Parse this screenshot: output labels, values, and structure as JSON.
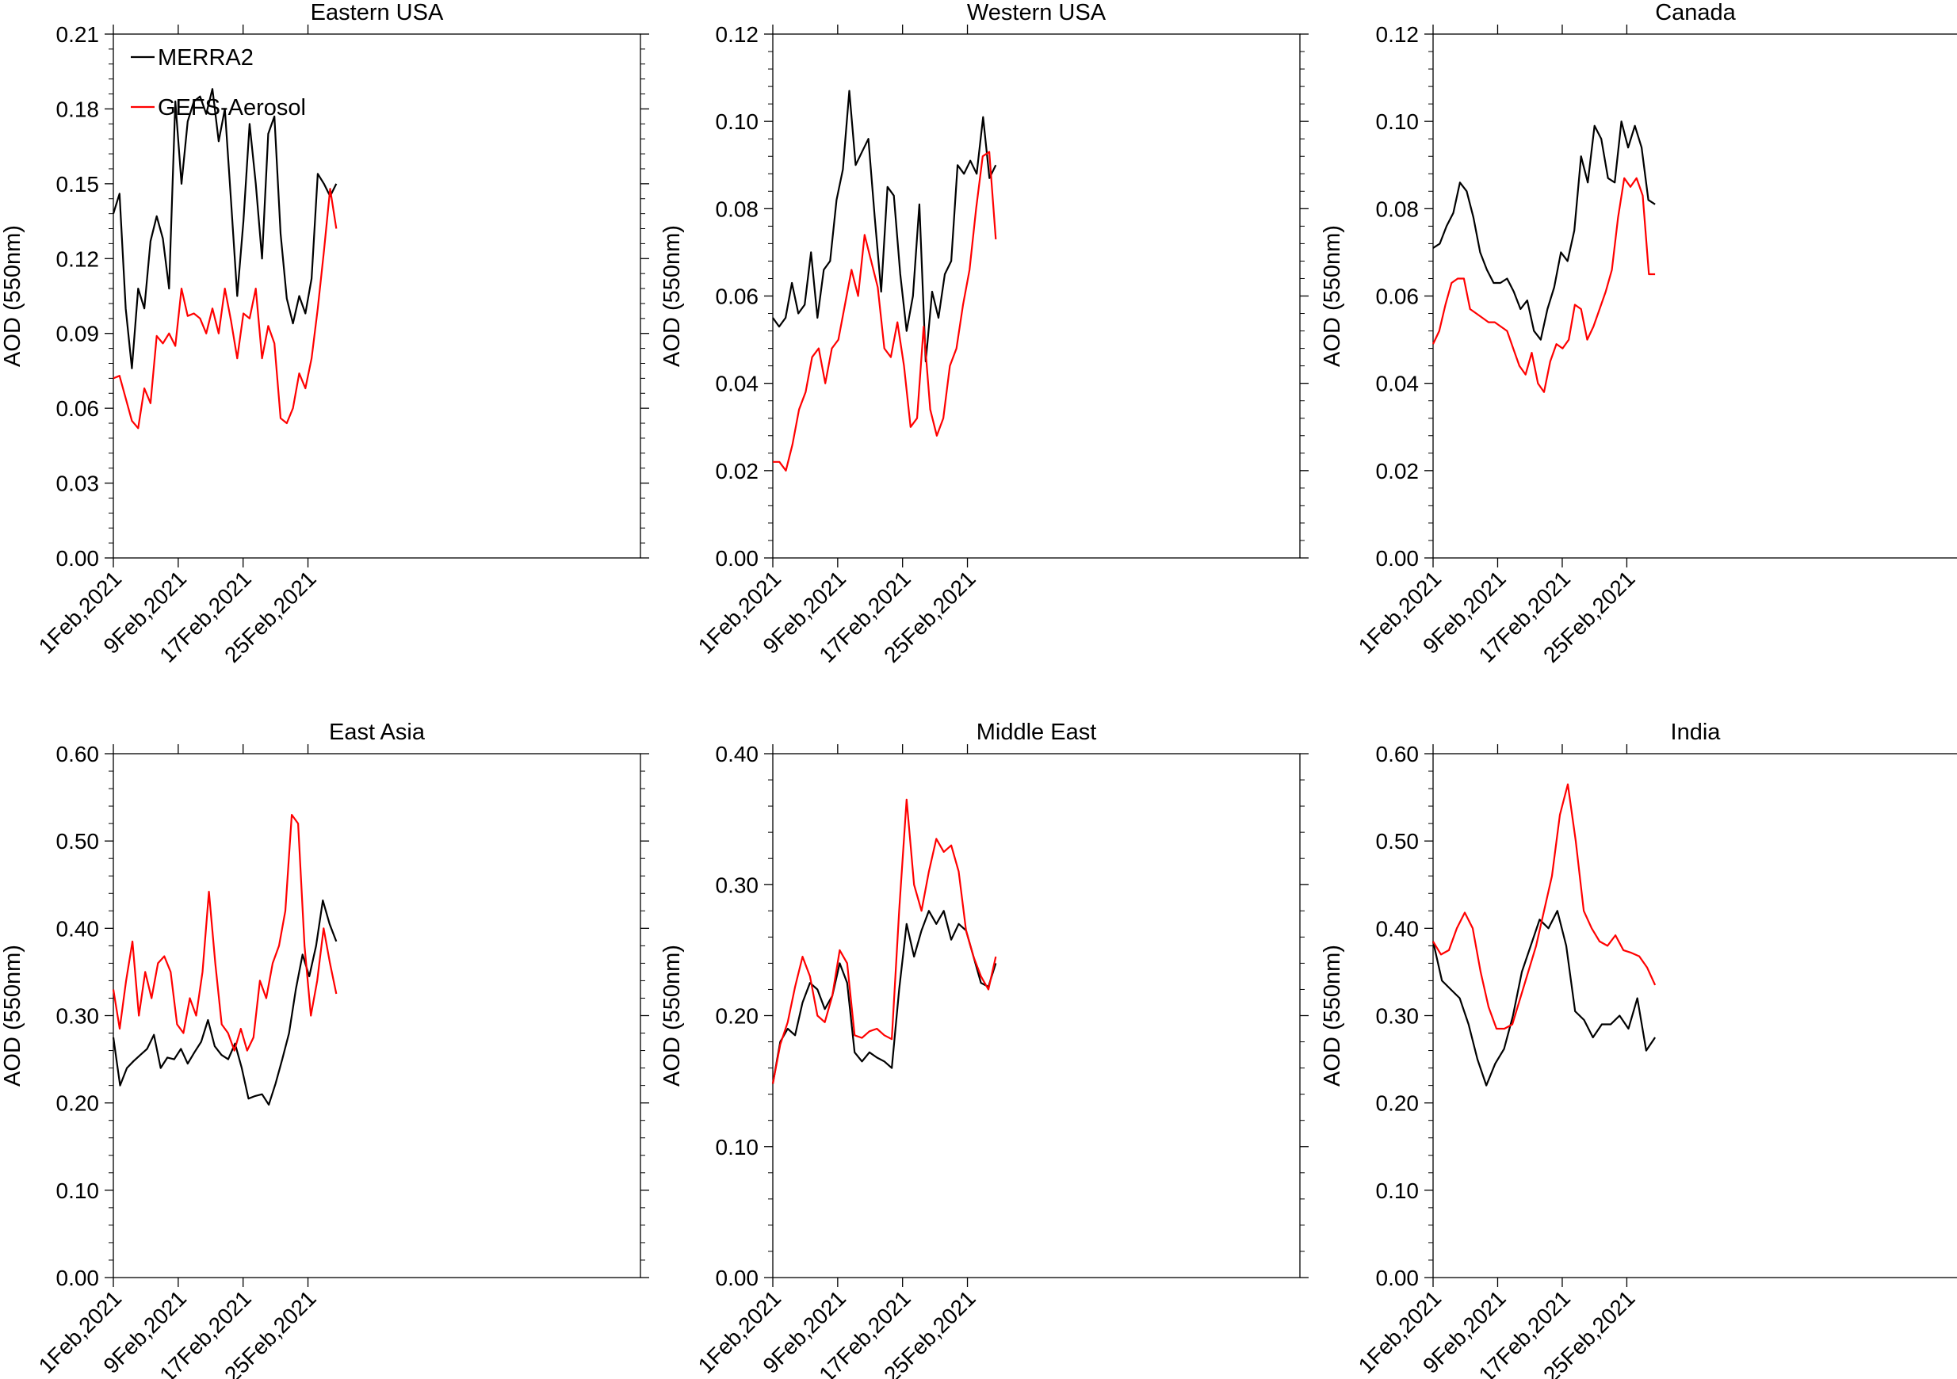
{
  "chart_data": [
    {
      "type": "line",
      "title": "Eastern USA",
      "ylabel": "AOD (550nm)",
      "xlabel": "",
      "ylim": [
        0,
        0.21
      ],
      "yticks": [
        "0.00",
        "0.03",
        "0.06",
        "0.09",
        "0.12",
        "0.15",
        "0.18",
        "0.21"
      ],
      "xticks": [
        "1Feb,2021",
        "9Feb,2021",
        "17Feb,2021",
        "25Feb,2021"
      ],
      "legend": [
        "MERRA2",
        "GEFS-Aerosol"
      ],
      "series": [
        {
          "name": "MERRA2",
          "color": "#000000",
          "values": [
            0.138,
            0.146,
            0.1,
            0.076,
            0.108,
            0.1,
            0.127,
            0.137,
            0.128,
            0.108,
            0.183,
            0.15,
            0.175,
            0.183,
            0.185,
            0.178,
            0.188,
            0.167,
            0.18,
            0.143,
            0.105,
            0.135,
            0.174,
            0.15,
            0.12,
            0.17,
            0.177,
            0.13,
            0.104,
            0.094,
            0.105,
            0.098,
            0.112,
            0.154,
            0.15,
            0.145,
            0.15
          ]
        },
        {
          "name": "GEFS-Aerosol",
          "color": "#ff0000",
          "values": [
            0.072,
            0.073,
            0.064,
            0.055,
            0.052,
            0.068,
            0.062,
            0.089,
            0.086,
            0.09,
            0.085,
            0.108,
            0.097,
            0.098,
            0.096,
            0.09,
            0.1,
            0.09,
            0.108,
            0.095,
            0.08,
            0.098,
            0.096,
            0.108,
            0.08,
            0.093,
            0.086,
            0.056,
            0.054,
            0.06,
            0.074,
            0.068,
            0.08,
            0.1,
            0.123,
            0.148,
            0.132
          ]
        }
      ]
    },
    {
      "type": "line",
      "title": "Western USA",
      "ylabel": "AOD (550nm)",
      "xlabel": "",
      "ylim": [
        0,
        0.12
      ],
      "yticks": [
        "0.00",
        "0.02",
        "0.04",
        "0.06",
        "0.08",
        "0.10",
        "0.12"
      ],
      "xticks": [
        "1Feb,2021",
        "9Feb,2021",
        "17Feb,2021",
        "25Feb,2021"
      ],
      "series": [
        {
          "name": "MERRA2",
          "color": "#000000",
          "values": [
            0.055,
            0.053,
            0.055,
            0.063,
            0.056,
            0.058,
            0.07,
            0.055,
            0.066,
            0.068,
            0.082,
            0.089,
            0.107,
            0.09,
            0.093,
            0.096,
            0.078,
            0.061,
            0.085,
            0.083,
            0.065,
            0.052,
            0.06,
            0.081,
            0.045,
            0.061,
            0.055,
            0.065,
            0.068,
            0.09,
            0.088,
            0.091,
            0.088,
            0.101,
            0.087,
            0.09
          ]
        },
        {
          "name": "GEFS-Aerosol",
          "color": "#ff0000",
          "values": [
            0.022,
            0.022,
            0.02,
            0.026,
            0.034,
            0.038,
            0.046,
            0.048,
            0.04,
            0.048,
            0.05,
            0.058,
            0.066,
            0.06,
            0.074,
            0.068,
            0.062,
            0.048,
            0.046,
            0.054,
            0.044,
            0.03,
            0.032,
            0.053,
            0.034,
            0.028,
            0.032,
            0.044,
            0.048,
            0.058,
            0.066,
            0.08,
            0.092,
            0.093,
            0.073
          ]
        }
      ]
    },
    {
      "type": "line",
      "title": "Canada",
      "ylabel": "AOD (550nm)",
      "xlabel": "",
      "ylim": [
        0,
        0.12
      ],
      "yticks": [
        "0.00",
        "0.02",
        "0.04",
        "0.06",
        "0.08",
        "0.10",
        "0.12"
      ],
      "xticks": [
        "1Feb,2021",
        "9Feb,2021",
        "17Feb,2021",
        "25Feb,2021"
      ],
      "series": [
        {
          "name": "MERRA2",
          "color": "#000000",
          "values": [
            0.071,
            0.072,
            0.076,
            0.079,
            0.086,
            0.084,
            0.078,
            0.07,
            0.066,
            0.063,
            0.063,
            0.064,
            0.061,
            0.057,
            0.059,
            0.052,
            0.05,
            0.057,
            0.062,
            0.07,
            0.068,
            0.075,
            0.092,
            0.086,
            0.099,
            0.096,
            0.087,
            0.086,
            0.1,
            0.094,
            0.099,
            0.094,
            0.082,
            0.081
          ]
        },
        {
          "name": "GEFS-Aerosol",
          "color": "#ff0000",
          "values": [
            0.049,
            0.052,
            0.058,
            0.063,
            0.064,
            0.064,
            0.057,
            0.056,
            0.055,
            0.054,
            0.054,
            0.053,
            0.052,
            0.048,
            0.044,
            0.042,
            0.047,
            0.04,
            0.038,
            0.045,
            0.049,
            0.048,
            0.05,
            0.058,
            0.057,
            0.05,
            0.053,
            0.057,
            0.061,
            0.066,
            0.078,
            0.087,
            0.085,
            0.087,
            0.083,
            0.065,
            0.065
          ]
        }
      ]
    },
    {
      "type": "line",
      "title": "East Asia",
      "ylabel": "AOD (550nm)",
      "xlabel": "",
      "ylim": [
        0,
        0.6
      ],
      "yticks": [
        "0.00",
        "0.10",
        "0.20",
        "0.30",
        "0.40",
        "0.50",
        "0.60"
      ],
      "xticks": [
        "1Feb,2021",
        "9Feb,2021",
        "17Feb,2021",
        "25Feb,2021"
      ],
      "series": [
        {
          "name": "MERRA2",
          "color": "#000000",
          "values": [
            0.275,
            0.22,
            0.24,
            0.248,
            0.255,
            0.262,
            0.278,
            0.24,
            0.252,
            0.25,
            0.262,
            0.245,
            0.258,
            0.27,
            0.295,
            0.265,
            0.255,
            0.25,
            0.268,
            0.24,
            0.205,
            0.208,
            0.21,
            0.198,
            0.222,
            0.25,
            0.28,
            0.33,
            0.37,
            0.345,
            0.38,
            0.432,
            0.405,
            0.385
          ]
        },
        {
          "name": "GEFS-Aerosol",
          "color": "#ff0000",
          "values": [
            0.33,
            0.285,
            0.34,
            0.385,
            0.3,
            0.35,
            0.32,
            0.36,
            0.368,
            0.35,
            0.29,
            0.28,
            0.32,
            0.3,
            0.35,
            0.442,
            0.36,
            0.29,
            0.28,
            0.26,
            0.285,
            0.26,
            0.275,
            0.34,
            0.32,
            0.36,
            0.38,
            0.42,
            0.53,
            0.52,
            0.38,
            0.3,
            0.34,
            0.4,
            0.36,
            0.325
          ]
        }
      ]
    },
    {
      "type": "line",
      "title": "Middle East",
      "ylabel": "AOD (550nm)",
      "xlabel": "",
      "ylim": [
        0,
        0.4
      ],
      "yticks": [
        "0.00",
        "0.10",
        "0.20",
        "0.30",
        "0.40"
      ],
      "xticks": [
        "1Feb,2021",
        "9Feb,2021",
        "17Feb,2021",
        "25Feb,2021"
      ],
      "series": [
        {
          "name": "MERRA2",
          "color": "#000000",
          "values": [
            0.148,
            0.18,
            0.19,
            0.185,
            0.21,
            0.225,
            0.22,
            0.205,
            0.215,
            0.24,
            0.225,
            0.172,
            0.165,
            0.172,
            0.168,
            0.165,
            0.16,
            0.22,
            0.27,
            0.245,
            0.265,
            0.28,
            0.27,
            0.28,
            0.258,
            0.27,
            0.265,
            0.245,
            0.225,
            0.222,
            0.24
          ]
        },
        {
          "name": "GEFS-Aerosol",
          "color": "#ff0000",
          "values": [
            0.148,
            0.178,
            0.195,
            0.222,
            0.245,
            0.23,
            0.2,
            0.195,
            0.215,
            0.25,
            0.24,
            0.185,
            0.183,
            0.188,
            0.19,
            0.185,
            0.182,
            0.28,
            0.365,
            0.3,
            0.28,
            0.31,
            0.335,
            0.325,
            0.33,
            0.31,
            0.265,
            0.245,
            0.23,
            0.22,
            0.245
          ]
        }
      ]
    },
    {
      "type": "line",
      "title": "India",
      "ylabel": "AOD (550nm)",
      "xlabel": "",
      "ylim": [
        0,
        0.6
      ],
      "yticks": [
        "0.00",
        "0.10",
        "0.20",
        "0.30",
        "0.40",
        "0.50",
        "0.60"
      ],
      "xticks": [
        "1Feb,2021",
        "9Feb,2021",
        "17Feb,2021",
        "25Feb,2021"
      ],
      "series": [
        {
          "name": "MERRA2",
          "color": "#000000",
          "values": [
            0.385,
            0.34,
            0.33,
            0.32,
            0.29,
            0.25,
            0.22,
            0.245,
            0.262,
            0.3,
            0.35,
            0.38,
            0.41,
            0.4,
            0.42,
            0.38,
            0.305,
            0.295,
            0.275,
            0.29,
            0.29,
            0.3,
            0.285,
            0.32,
            0.26,
            0.275
          ]
        },
        {
          "name": "GEFS-Aerosol",
          "color": "#ff0000",
          "values": [
            0.385,
            0.37,
            0.375,
            0.4,
            0.418,
            0.4,
            0.35,
            0.31,
            0.285,
            0.285,
            0.29,
            0.32,
            0.35,
            0.38,
            0.42,
            0.46,
            0.53,
            0.565,
            0.5,
            0.42,
            0.4,
            0.385,
            0.38,
            0.392,
            0.375,
            0.372,
            0.368,
            0.355,
            0.335
          ]
        }
      ]
    }
  ]
}
